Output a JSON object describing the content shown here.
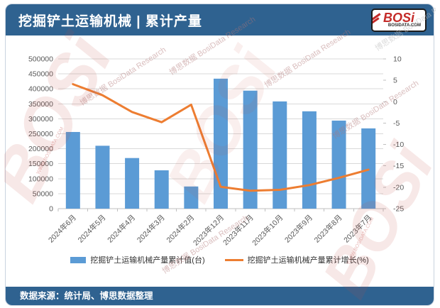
{
  "header": {
    "title": "挖掘铲土运输机械 | 累计产量",
    "logo_text": "BOSi",
    "logo_sub": "BOSIDATA.COM"
  },
  "footer": {
    "source": "数据来源：统计局、博思数据整理"
  },
  "watermark": {
    "brand": "BOSi",
    "text": "博思数据 BosiData Research",
    "url": "WWW.BOSIDATA.COM"
  },
  "colors": {
    "header_bg": "#2F6290",
    "bar": "#5B9BD5",
    "line": "#ED7D31",
    "grid": "#D9D9D9",
    "axis_line": "#BFBFBF",
    "axis_text": "#595959",
    "logo_red": "#C42A28"
  },
  "chart_data": {
    "type": "bar",
    "subtype": "bar+line combo, dual axis",
    "title": "挖掘铲土运输机械 | 累计产量",
    "categories": [
      "2024年6月",
      "2024年5月",
      "2024年4月",
      "2024年3月",
      "2024年2月",
      "2023年12月",
      "2023年11月",
      "2023年10月",
      "2023年9月",
      "2023年8月",
      "2023年7月"
    ],
    "series": [
      {
        "name": "挖掘铲土运输机械产量累计值(台)",
        "type": "bar",
        "axis": "left",
        "color": "#5B9BD5",
        "values": [
          256000,
          210000,
          169000,
          128000,
          74000,
          434000,
          394000,
          358000,
          325000,
          294000,
          268000
        ]
      },
      {
        "name": "挖掘铲土运输机械产量累计增长(%)",
        "type": "line",
        "axis": "right",
        "color": "#ED7D31",
        "values": [
          4.1,
          1.5,
          -2.4,
          -4.8,
          -0.7,
          -19.9,
          -20.8,
          -20.6,
          -19.5,
          -17.8,
          -15.9
        ]
      }
    ],
    "left_axis": {
      "min": 0,
      "max": 500000,
      "step": 50000
    },
    "right_axis": {
      "min": -25,
      "max": 10,
      "step": 5
    },
    "grid": true,
    "legend_position": "bottom",
    "x_label_rotation": -45
  }
}
